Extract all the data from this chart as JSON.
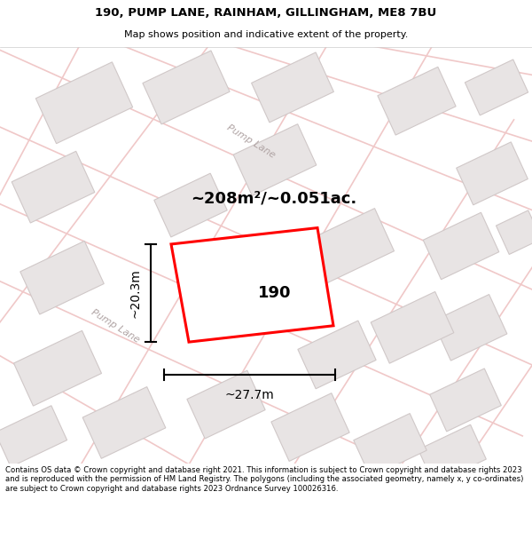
{
  "title_line1": "190, PUMP LANE, RAINHAM, GILLINGHAM, ME8 7BU",
  "title_line2": "Map shows position and indicative extent of the property.",
  "area_label": "~208m²/~0.051ac.",
  "property_number": "190",
  "dim_width": "~27.7m",
  "dim_height": "~20.3m",
  "footer_text": "Contains OS data © Crown copyright and database right 2021. This information is subject to Crown copyright and database rights 2023 and is reproduced with the permission of HM Land Registry. The polygons (including the associated geometry, namely x, y co-ordinates) are subject to Crown copyright and database rights 2023 Ordnance Survey 100026316.",
  "highlight_color": "#ff0000",
  "road_color": "#f0c8c8",
  "road_label": "Pump Lane",
  "building_fill": "#e8e4e4",
  "building_edge": "#d0c8c8"
}
